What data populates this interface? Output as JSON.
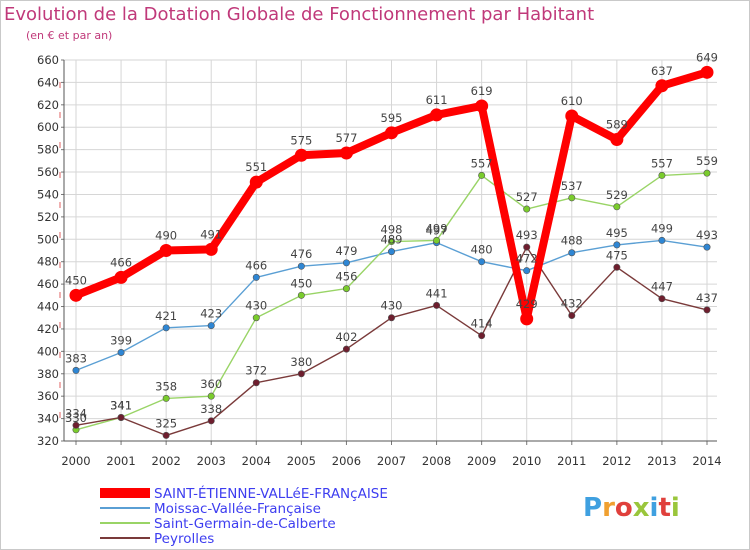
{
  "header": {
    "title": "Evolution de la Dotation Globale de Fonctionnement par Habitant",
    "subtitle": "(en € et par an)"
  },
  "logo": {
    "text": "Proxiti",
    "colors": [
      "#3fa0e0",
      "#f0a030",
      "#e0403c",
      "#9ac63c",
      "#3fa0e0",
      "#e0403c",
      "#9ac63c"
    ]
  },
  "chart_data": {
    "type": "line",
    "title": "Evolution de la Dotation Globale de Fonctionnement par Habitant",
    "ylabel": "(en € et par an)",
    "xlabel": "",
    "categories": [
      "2000",
      "2001",
      "2002",
      "2003",
      "2004",
      "2005",
      "2006",
      "2007",
      "2008",
      "2009",
      "2010",
      "2011",
      "2012",
      "2013",
      "2014"
    ],
    "ylim": [
      320,
      660
    ],
    "yticks": [
      320,
      340,
      360,
      380,
      400,
      420,
      440,
      460,
      480,
      500,
      520,
      540,
      560,
      580,
      600,
      620,
      640,
      660
    ],
    "grid": true,
    "legend_position": "bottom-left",
    "series": [
      {
        "name": "SAINT-ÉTIENNE-VALLéE-FRANçAISE",
        "color": "#ff0000",
        "marker": "#ff0000",
        "bold": true,
        "values": [
          450,
          466,
          490,
          491,
          551,
          575,
          577,
          595,
          611,
          619,
          429,
          610,
          589,
          637,
          649
        ],
        "labels": [
          "450",
          "466",
          "490",
          "491",
          "551",
          "575",
          "577",
          "595",
          "611",
          "619",
          "429",
          "610",
          "589",
          "637",
          "649"
        ]
      },
      {
        "name": "Moissac-Vallée-Française",
        "color": "#5a9fd4",
        "marker": "#2e86d4",
        "bold": false,
        "values": [
          383,
          399,
          421,
          423,
          466,
          476,
          479,
          489,
          497,
          480,
          472,
          488,
          495,
          499,
          493
        ],
        "labels": [
          "383",
          "399",
          "421",
          "423",
          "466",
          "476",
          "479",
          "489",
          "497",
          "480",
          "472",
          "488",
          "495",
          "499",
          "493"
        ]
      },
      {
        "name": "Saint-Germain-de-Calberte",
        "color": "#99d466",
        "marker": "#7acc2c",
        "bold": false,
        "values": [
          330,
          341,
          358,
          360,
          430,
          450,
          456,
          498,
          499,
          557,
          527,
          537,
          529,
          557,
          559
        ],
        "labels": [
          "330",
          "341",
          "358",
          "360",
          "430",
          "450",
          "456",
          "498",
          "499",
          "557",
          "527",
          "537",
          "529",
          "557",
          "559"
        ]
      },
      {
        "name": "Peyrolles",
        "color": "#7a3a3a",
        "marker": "#6e1e2e",
        "bold": false,
        "values": [
          334,
          341,
          325,
          338,
          372,
          380,
          402,
          430,
          441,
          414,
          493,
          432,
          475,
          447,
          437
        ],
        "labels": [
          "334",
          "341",
          "325",
          "338",
          "372",
          "380",
          "402",
          "430",
          "441",
          "414",
          "493",
          "432",
          "475",
          "447",
          "437"
        ]
      }
    ]
  }
}
